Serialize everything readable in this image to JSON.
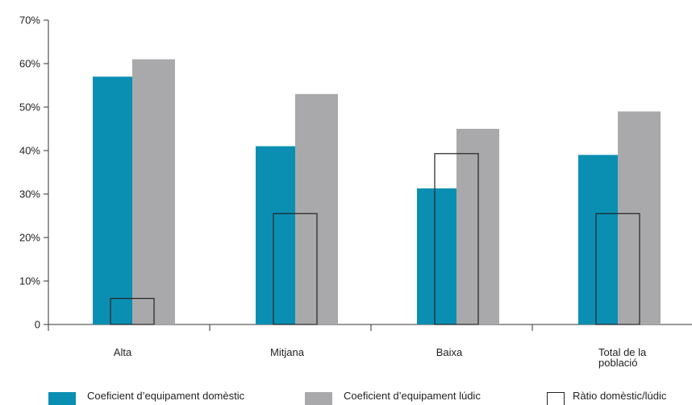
{
  "chart_data": {
    "type": "bar",
    "categories": [
      "Alta",
      "Mitjana",
      "Baixa",
      "Total de la població"
    ],
    "category_label_lines": [
      [
        "Alta"
      ],
      [
        "Mitjana"
      ],
      [
        "Baixa"
      ],
      [
        "Total de la",
        "població"
      ]
    ],
    "series": [
      {
        "name": "Coeficient d’equipament domèstic",
        "values": [
          57,
          41,
          31.3,
          39
        ],
        "color": "#0a8fb2",
        "style": "filled"
      },
      {
        "name": "Coeficient d’equipament lúdic",
        "values": [
          61,
          53,
          45,
          49
        ],
        "color": "#a9a9ab",
        "style": "filled"
      },
      {
        "name": "Ràtio domèstic/lúdic",
        "values": [
          6,
          25.5,
          39.3,
          25.5
        ],
        "color": "#222222",
        "style": "outline"
      }
    ],
    "ylim": [
      0,
      70
    ],
    "yticks": [
      0,
      10,
      20,
      30,
      40,
      50,
      60,
      70
    ],
    "ytick_labels": [
      "0",
      "10%",
      "20%",
      "30%",
      "40%",
      "50%",
      "60%",
      "70%"
    ],
    "title": "",
    "xlabel": "",
    "ylabel": "",
    "grid": false,
    "legend_position": "bottom"
  }
}
